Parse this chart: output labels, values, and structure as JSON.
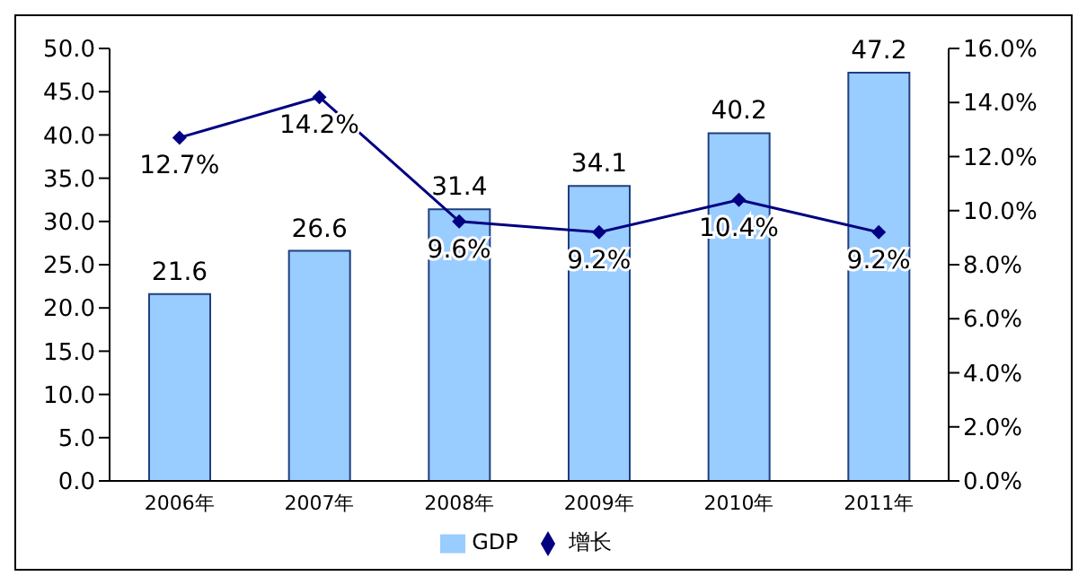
{
  "chart_data": {
    "type": "bar",
    "categories": [
      "2006年",
      "2007年",
      "2008年",
      "2009年",
      "2010年",
      "2011年"
    ],
    "series": [
      {
        "name": "GDP",
        "color": "#99ccff",
        "values": [
          21.6,
          26.6,
          31.4,
          34.1,
          40.2,
          47.2
        ],
        "value_labels": [
          "21.6",
          "26.6",
          "31.4",
          "34.1",
          "40.2",
          "47.2"
        ]
      },
      {
        "name": "增长",
        "type": "line",
        "axis": "y2",
        "color": "#000080",
        "values": [
          12.7,
          14.2,
          9.6,
          9.2,
          10.4,
          9.2
        ],
        "value_labels": [
          "12.7%",
          "14.2%",
          "9.6%",
          "9.2%",
          "10.4%",
          "9.2%"
        ]
      }
    ],
    "ylim": [
      0,
      50
    ],
    "yticks": [
      {
        "value": 0,
        "label": "0.0"
      },
      {
        "value": 5,
        "label": "5.0"
      },
      {
        "value": 10,
        "label": "10.0"
      },
      {
        "value": 15,
        "label": "15.0"
      },
      {
        "value": 20,
        "label": "20.0"
      },
      {
        "value": 25,
        "label": "25.0"
      },
      {
        "value": 30,
        "label": "30.0"
      },
      {
        "value": 35,
        "label": "35.0"
      },
      {
        "value": 40,
        "label": "40.0"
      },
      {
        "value": 45,
        "label": "45.0"
      },
      {
        "value": 50,
        "label": "50.0"
      }
    ],
    "y2lim": [
      0,
      16
    ],
    "y2ticks": [
      {
        "value": 0,
        "label": "0.0%"
      },
      {
        "value": 2,
        "label": "2.0%"
      },
      {
        "value": 4,
        "label": "4.0%"
      },
      {
        "value": 6,
        "label": "6.0%"
      },
      {
        "value": 8,
        "label": "8.0%"
      },
      {
        "value": 10,
        "label": "10.0%"
      },
      {
        "value": 12,
        "label": "12.0%"
      },
      {
        "value": 14,
        "label": "14.0%"
      },
      {
        "value": 16,
        "label": "16.0%"
      }
    ],
    "legend": "bottom",
    "marker": "diamond",
    "line_style": "solid"
  }
}
